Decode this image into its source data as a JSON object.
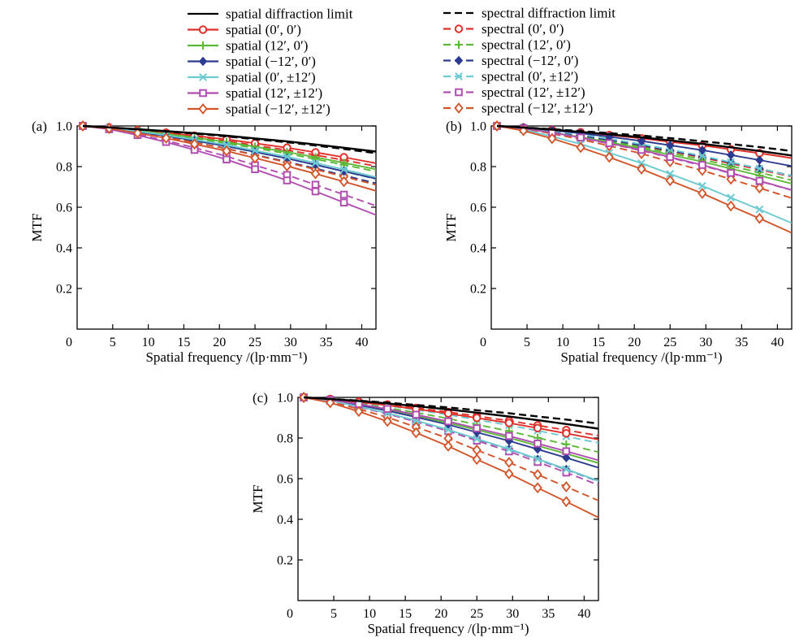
{
  "legend": {
    "spatial": [
      {
        "key": "spatial_limit",
        "label": "spatial diffraction limit"
      },
      {
        "key": "s0",
        "label": "spatial (0′, 0′)"
      },
      {
        "key": "s1",
        "label": "spatial (12′, 0′)"
      },
      {
        "key": "s2",
        "label": "spatial (−12′, 0′)"
      },
      {
        "key": "s3",
        "label": "spatial (0′, ±12′)"
      },
      {
        "key": "s4",
        "label": "spatial (12′, ±12′)"
      },
      {
        "key": "s5",
        "label": "spatial (−12′, ±12′)"
      }
    ],
    "spectral": [
      {
        "key": "spectral_limit",
        "label": "spectral diffraction limit"
      },
      {
        "key": "s0",
        "label": "spectral (0′, 0′)"
      },
      {
        "key": "s1",
        "label": "spectral (12′, 0′)"
      },
      {
        "key": "s2",
        "label": "spectral (−12′, 0′)"
      },
      {
        "key": "s3",
        "label": "spectral (0′, ±12′)"
      },
      {
        "key": "s4",
        "label": "spectral (12′, ±12′)"
      },
      {
        "key": "s5",
        "label": "spectral (−12′, ±12′)"
      }
    ]
  },
  "styles": {
    "limit": {
      "color": "#000000"
    },
    "s0": {
      "color": "#e0302a",
      "marker": "circle"
    },
    "s1": {
      "color": "#5cb836",
      "marker": "plus"
    },
    "s2": {
      "color": "#2c3b8f",
      "marker": "diamond-filled"
    },
    "s3": {
      "color": "#6ccad0",
      "marker": "x"
    },
    "s4": {
      "color": "#b04fb0",
      "marker": "square"
    },
    "s5": {
      "color": "#d2542a",
      "marker": "diamond-open"
    }
  },
  "chart_data": [
    {
      "type": "line",
      "panel": "(a)",
      "xlabel": "Spatial frequency /(lp·mm⁻¹)",
      "ylabel": "MTF",
      "xlim": [
        0,
        42
      ],
      "ylim": [
        0,
        1.0
      ],
      "xticks": [
        0,
        5,
        10,
        15,
        20,
        25,
        30,
        35,
        40
      ],
      "yticks": [
        0.2,
        0.4,
        0.6,
        0.8,
        1.0
      ],
      "x": [
        0.8,
        4.5,
        8.5,
        12.5,
        16.5,
        21,
        25,
        29.5,
        33.5,
        37.5,
        42
      ],
      "series": [
        {
          "key": "spatial_limit",
          "values": [
            1.0,
            0.993,
            0.984,
            0.975,
            0.965,
            0.952,
            0.939,
            0.924,
            0.909,
            0.893,
            0.874
          ]
        },
        {
          "key": "spectral_limit",
          "values": [
            1.0,
            0.993,
            0.983,
            0.973,
            0.962,
            0.949,
            0.935,
            0.92,
            0.904,
            0.887,
            0.866
          ]
        },
        {
          "key": "s0",
          "domain": "spatial",
          "values": [
            1.0,
            0.993,
            0.98,
            0.967,
            0.952,
            0.934,
            0.915,
            0.893,
            0.87,
            0.846,
            0.817
          ]
        },
        {
          "key": "s0",
          "domain": "spectral",
          "values": [
            1.0,
            0.992,
            0.978,
            0.963,
            0.946,
            0.926,
            0.905,
            0.881,
            0.857,
            0.832,
            0.802
          ]
        },
        {
          "key": "s1",
          "domain": "spatial",
          "values": [
            1.0,
            0.992,
            0.977,
            0.961,
            0.943,
            0.921,
            0.898,
            0.872,
            0.846,
            0.819,
            0.787
          ]
        },
        {
          "key": "s1",
          "domain": "spectral",
          "values": [
            1.0,
            0.991,
            0.975,
            0.958,
            0.938,
            0.915,
            0.891,
            0.864,
            0.837,
            0.809,
            0.776
          ]
        },
        {
          "key": "s2",
          "domain": "spatial",
          "values": [
            1.0,
            0.99,
            0.972,
            0.951,
            0.928,
            0.9,
            0.872,
            0.84,
            0.809,
            0.777,
            0.741
          ]
        },
        {
          "key": "s2",
          "domain": "spectral",
          "values": [
            1.0,
            0.989,
            0.968,
            0.945,
            0.92,
            0.889,
            0.858,
            0.824,
            0.791,
            0.757,
            0.718
          ]
        },
        {
          "key": "s3",
          "domain": "spatial",
          "values": [
            1.0,
            0.991,
            0.974,
            0.955,
            0.933,
            0.907,
            0.879,
            0.849,
            0.818,
            0.786,
            0.748
          ]
        },
        {
          "key": "s3",
          "domain": "spectral",
          "values": [
            1.0,
            0.99,
            0.971,
            0.951,
            0.928,
            0.9,
            0.871,
            0.84,
            0.808,
            0.776,
            0.738
          ]
        },
        {
          "key": "s4",
          "domain": "spatial",
          "values": [
            1.0,
            0.984,
            0.955,
            0.921,
            0.882,
            0.835,
            0.787,
            0.732,
            0.678,
            0.623,
            0.562
          ]
        },
        {
          "key": "s4",
          "domain": "spectral",
          "values": [
            1.0,
            0.985,
            0.958,
            0.928,
            0.893,
            0.851,
            0.807,
            0.759,
            0.711,
            0.662,
            0.607
          ]
        },
        {
          "key": "s5",
          "domain": "spatial",
          "values": [
            1.0,
            0.988,
            0.965,
            0.94,
            0.911,
            0.877,
            0.842,
            0.803,
            0.765,
            0.726,
            0.681
          ]
        },
        {
          "key": "s5",
          "domain": "spectral",
          "values": [
            1.0,
            0.989,
            0.968,
            0.945,
            0.919,
            0.888,
            0.856,
            0.821,
            0.786,
            0.751,
            0.71
          ]
        }
      ]
    },
    {
      "type": "line",
      "panel": "(b)",
      "xlabel": "Spatial frequency /(lp·mm⁻¹)",
      "ylabel": "MTF",
      "xlim": [
        0,
        42
      ],
      "ylim": [
        0,
        1.0
      ],
      "xticks": [
        0,
        5,
        10,
        15,
        20,
        25,
        30,
        35,
        40
      ],
      "yticks": [
        0.2,
        0.4,
        0.6,
        0.8,
        1.0
      ],
      "x": [
        0.8,
        4.5,
        8.5,
        12.5,
        16.5,
        21,
        25,
        29.5,
        33.5,
        37.5,
        42
      ],
      "series": [
        {
          "key": "spatial_limit",
          "values": [
            1.0,
            0.992,
            0.982,
            0.971,
            0.959,
            0.944,
            0.929,
            0.912,
            0.895,
            0.877,
            0.855
          ]
        },
        {
          "key": "spectral_limit",
          "values": [
            1.0,
            0.993,
            0.984,
            0.975,
            0.965,
            0.953,
            0.94,
            0.925,
            0.911,
            0.896,
            0.877
          ]
        },
        {
          "key": "s0",
          "domain": "spatial",
          "values": [
            1.0,
            0.992,
            0.981,
            0.969,
            0.955,
            0.939,
            0.922,
            0.904,
            0.885,
            0.866,
            0.842
          ]
        },
        {
          "key": "s0",
          "domain": "spectral",
          "values": [
            1.0,
            0.989,
            0.971,
            0.951,
            0.928,
            0.902,
            0.875,
            0.845,
            0.815,
            0.785,
            0.75
          ]
        },
        {
          "key": "s1",
          "domain": "spatial",
          "values": [
            1.0,
            0.988,
            0.968,
            0.945,
            0.92,
            0.889,
            0.858,
            0.824,
            0.79,
            0.756,
            0.716
          ]
        },
        {
          "key": "s1",
          "domain": "spectral",
          "values": [
            1.0,
            0.989,
            0.97,
            0.949,
            0.925,
            0.896,
            0.867,
            0.835,
            0.803,
            0.771,
            0.733
          ]
        },
        {
          "key": "s2",
          "domain": "spatial",
          "values": [
            1.0,
            0.992,
            0.979,
            0.964,
            0.947,
            0.926,
            0.905,
            0.881,
            0.857,
            0.832,
            0.803
          ]
        },
        {
          "key": "s2",
          "domain": "spectral",
          "values": [
            1.0,
            0.99,
            0.972,
            0.953,
            0.931,
            0.905,
            0.879,
            0.849,
            0.82,
            0.79,
            0.755
          ]
        },
        {
          "key": "s3",
          "domain": "spatial",
          "values": [
            1.0,
            0.982,
            0.949,
            0.911,
            0.868,
            0.817,
            0.764,
            0.705,
            0.647,
            0.589,
            0.522
          ]
        },
        {
          "key": "s3",
          "domain": "spectral",
          "values": [
            1.0,
            0.992,
            0.976,
            0.958,
            0.937,
            0.911,
            0.884,
            0.853,
            0.822,
            0.79,
            0.753
          ]
        },
        {
          "key": "s4",
          "domain": "spatial",
          "values": [
            1.0,
            0.988,
            0.967,
            0.943,
            0.915,
            0.882,
            0.847,
            0.808,
            0.769,
            0.73,
            0.685
          ]
        },
        {
          "key": "s4",
          "domain": "spectral",
          "values": [
            1.0,
            0.988,
            0.966,
            0.941,
            0.913,
            0.879,
            0.844,
            0.805,
            0.767,
            0.728,
            0.684
          ]
        },
        {
          "key": "s5",
          "domain": "spatial",
          "values": [
            1.0,
            0.977,
            0.938,
            0.894,
            0.846,
            0.788,
            0.731,
            0.668,
            0.606,
            0.545,
            0.474
          ]
        },
        {
          "key": "s5",
          "domain": "spectral",
          "values": [
            1.0,
            0.987,
            0.962,
            0.934,
            0.902,
            0.864,
            0.824,
            0.781,
            0.738,
            0.695,
            0.645
          ]
        }
      ]
    },
    {
      "type": "line",
      "panel": "(c)",
      "xlabel": "Spatial frequency /(lp·mm⁻¹)",
      "ylabel": "MTF",
      "xlim": [
        0,
        42
      ],
      "ylim": [
        0,
        1.0
      ],
      "xticks": [
        0,
        5,
        10,
        15,
        20,
        25,
        30,
        35,
        40
      ],
      "yticks": [
        0.2,
        0.4,
        0.6,
        0.8,
        1.0
      ],
      "x": [
        0.8,
        4.5,
        8.5,
        12.5,
        16.5,
        21,
        25,
        29.5,
        33.5,
        37.5,
        42
      ],
      "series": [
        {
          "key": "spatial_limit",
          "values": [
            1.0,
            0.992,
            0.982,
            0.97,
            0.957,
            0.941,
            0.925,
            0.906,
            0.888,
            0.869,
            0.846
          ]
        },
        {
          "key": "spectral_limit",
          "values": [
            1.0,
            0.993,
            0.984,
            0.974,
            0.963,
            0.951,
            0.937,
            0.922,
            0.906,
            0.891,
            0.871
          ]
        },
        {
          "key": "s0",
          "domain": "spatial",
          "values": [
            1.0,
            0.991,
            0.977,
            0.961,
            0.943,
            0.921,
            0.899,
            0.874,
            0.849,
            0.823,
            0.793
          ]
        },
        {
          "key": "s0",
          "domain": "spectral",
          "values": [
            1.0,
            0.992,
            0.979,
            0.965,
            0.948,
            0.928,
            0.908,
            0.885,
            0.862,
            0.839,
            0.812
          ]
        },
        {
          "key": "s1",
          "domain": "spatial",
          "values": [
            1.0,
            0.987,
            0.965,
            0.939,
            0.91,
            0.875,
            0.84,
            0.801,
            0.762,
            0.723,
            0.677
          ]
        },
        {
          "key": "s1",
          "domain": "spectral",
          "values": [
            1.0,
            0.989,
            0.97,
            0.949,
            0.925,
            0.896,
            0.866,
            0.834,
            0.801,
            0.769,
            0.731
          ]
        },
        {
          "key": "s2",
          "domain": "spatial",
          "values": [
            1.0,
            0.986,
            0.962,
            0.934,
            0.903,
            0.866,
            0.828,
            0.786,
            0.745,
            0.703,
            0.654
          ]
        },
        {
          "key": "s2",
          "domain": "spectral",
          "values": [
            1.0,
            0.984,
            0.955,
            0.922,
            0.885,
            0.84,
            0.795,
            0.745,
            0.695,
            0.645,
            0.587
          ]
        },
        {
          "key": "s3",
          "domain": "spatial",
          "values": [
            1.0,
            0.984,
            0.955,
            0.923,
            0.886,
            0.841,
            0.796,
            0.746,
            0.697,
            0.647,
            0.589
          ]
        },
        {
          "key": "s3",
          "domain": "spectral",
          "values": [
            1.0,
            0.991,
            0.976,
            0.959,
            0.939,
            0.915,
            0.89,
            0.863,
            0.836,
            0.808,
            0.776
          ]
        },
        {
          "key": "s4",
          "domain": "spatial",
          "values": [
            1.0,
            0.988,
            0.967,
            0.943,
            0.915,
            0.882,
            0.848,
            0.81,
            0.773,
            0.735,
            0.691
          ]
        },
        {
          "key": "s4",
          "domain": "spectral",
          "values": [
            1.0,
            0.983,
            0.953,
            0.919,
            0.88,
            0.834,
            0.787,
            0.734,
            0.682,
            0.63,
            0.569
          ]
        },
        {
          "key": "s5",
          "domain": "spatial",
          "values": [
            1.0,
            0.974,
            0.931,
            0.882,
            0.826,
            0.76,
            0.695,
            0.624,
            0.555,
            0.487,
            0.409
          ]
        },
        {
          "key": "s5",
          "domain": "spectral",
          "values": [
            1.0,
            0.979,
            0.943,
            0.902,
            0.854,
            0.798,
            0.741,
            0.68,
            0.62,
            0.56,
            0.492
          ]
        }
      ]
    }
  ]
}
